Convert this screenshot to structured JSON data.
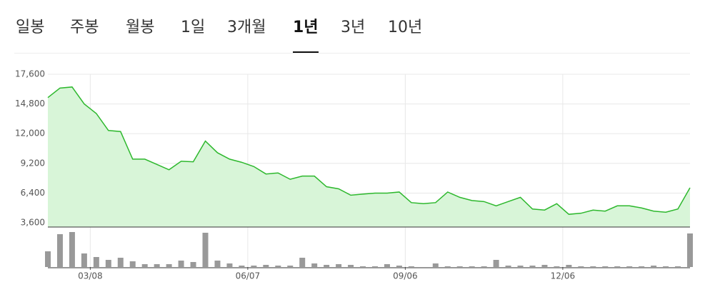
{
  "tabs": [
    "일봉",
    "주봉",
    "월봉",
    "1일",
    "3개월",
    "1년",
    "3년",
    "10년"
  ],
  "chart_data": {
    "type": "line",
    "x": [
      0,
      1,
      2,
      3,
      4,
      5,
      6,
      7,
      8,
      9,
      10,
      11,
      12,
      13,
      14,
      15,
      16,
      17,
      18,
      19,
      20,
      21,
      22,
      23,
      24,
      25,
      26,
      27,
      28,
      29,
      30,
      31,
      32,
      33,
      34,
      35,
      36,
      37,
      38,
      39,
      40,
      41,
      42,
      43,
      44,
      45,
      46,
      47,
      48,
      49,
      50,
      51,
      52,
      53
    ],
    "xlim": [
      0,
      53
    ],
    "xticks": [
      {
        "value": 3.5,
        "label": "03/08"
      },
      {
        "value": 16.5,
        "label": "06/07"
      },
      {
        "value": 29.5,
        "label": "09/06"
      },
      {
        "value": 42.5,
        "label": "12/06"
      }
    ],
    "ylim": [
      3200,
      17600
    ],
    "yticks": [
      {
        "value": 3600,
        "label": "3,600"
      },
      {
        "value": 6400,
        "label": "6,400"
      },
      {
        "value": 9200,
        "label": "9,200"
      },
      {
        "value": 12000,
        "label": "12,000"
      },
      {
        "value": 14800,
        "label": "14,800"
      },
      {
        "value": 17600,
        "label": "17,600"
      }
    ],
    "y2lim": [
      0,
      50
    ],
    "grid": true,
    "series": [
      {
        "color": "#2db82d",
        "fill": "#d8f5d8",
        "values": [
          15400,
          16300,
          16400,
          14800,
          13900,
          12300,
          12200,
          9600,
          9600,
          9100,
          8600,
          9400,
          9350,
          11300,
          10200,
          9600,
          9300,
          8900,
          8200,
          8300,
          7700,
          8000,
          8000,
          7000,
          6800,
          6200,
          6300,
          6400,
          6400,
          6500,
          5500,
          5400,
          5500,
          6500,
          6000,
          5700,
          5600,
          5200,
          5600,
          6000,
          4900,
          4800,
          5400,
          4400,
          4500,
          4800,
          4700,
          5200,
          5200,
          5000,
          4700,
          4600,
          4900,
          6900
        ]
      },
      {
        "type": "bar",
        "axis": "y2",
        "color": "#999999",
        "values": [
          22,
          46,
          49,
          19,
          14,
          10,
          13,
          8,
          4,
          4,
          4,
          9,
          7,
          48,
          9,
          5,
          2,
          2,
          3,
          2,
          2,
          13,
          5,
          3,
          4,
          3,
          1,
          1,
          4,
          2,
          1,
          0,
          5,
          1,
          1,
          1,
          1,
          10,
          2,
          2,
          2,
          3,
          1,
          3,
          1,
          1,
          1,
          1,
          1,
          1,
          2,
          1,
          1,
          47
        ]
      }
    ]
  }
}
